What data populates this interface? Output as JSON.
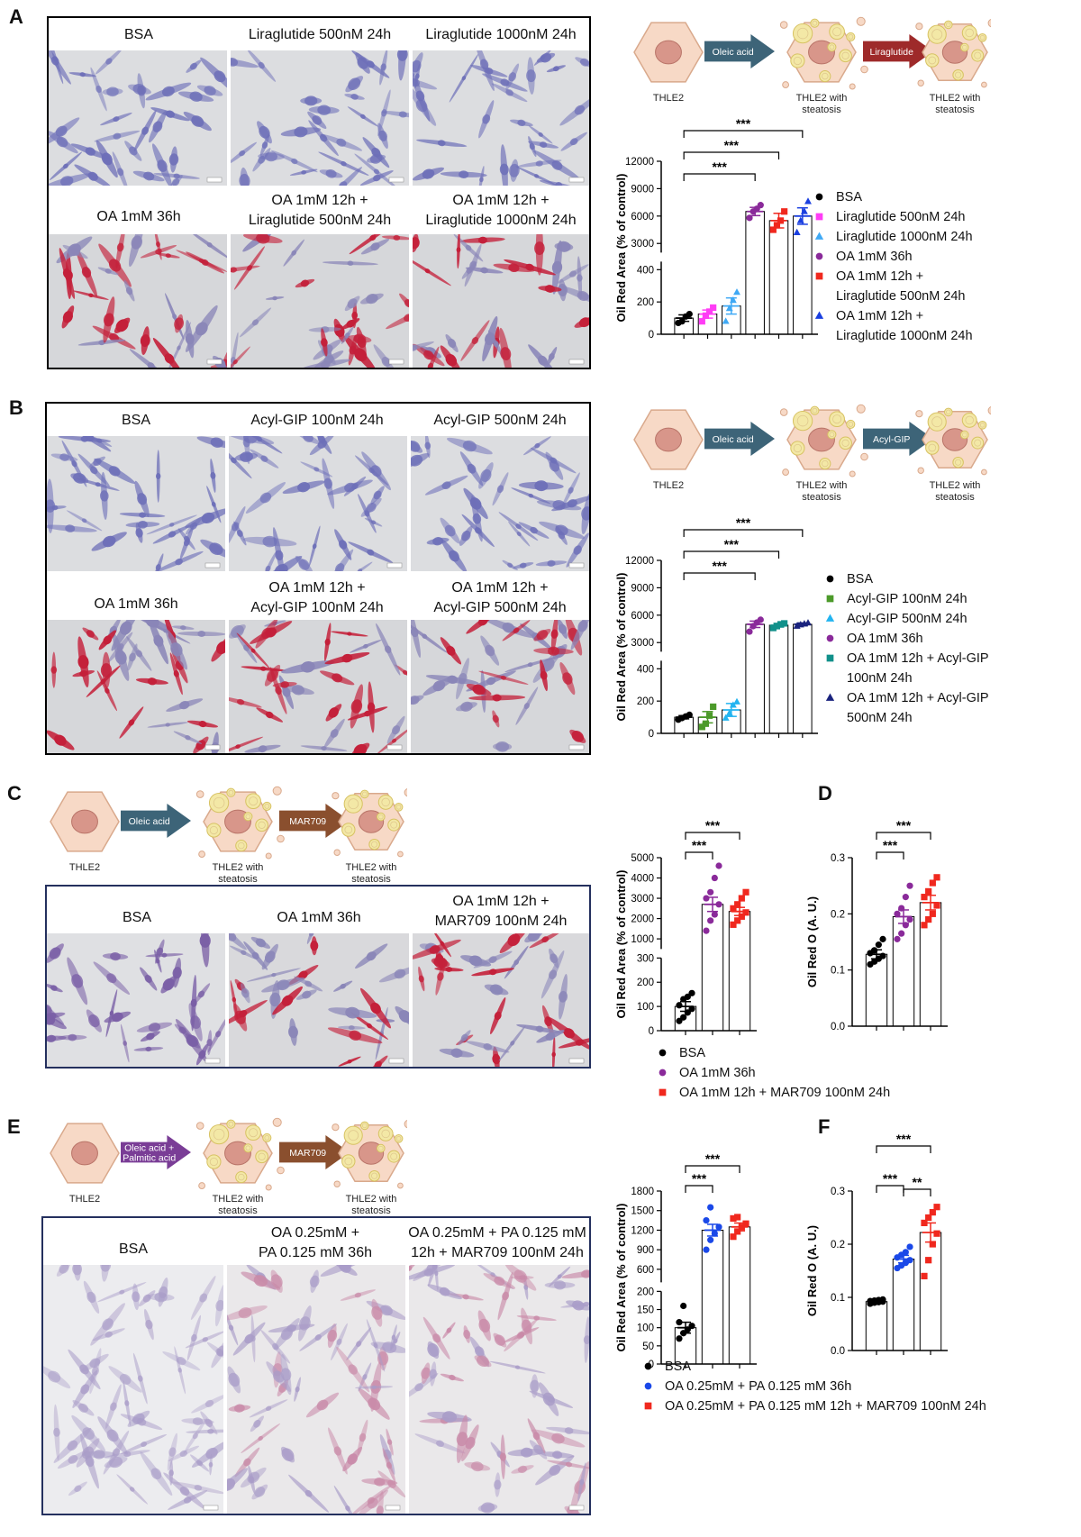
{
  "panels": {
    "A": {
      "letter": "A",
      "labels_top": [
        "BSA",
        "Liraglutide 500nM 24h",
        "Liraglutide 1000nM 24h"
      ],
      "labels_bottom": [
        "OA 1mM 36h",
        "OA 1mM 12h +\nLiraglutide 500nM 24h",
        "OA 1mM 12h +\nLiraglutide 1000nM 24h"
      ],
      "schematic": {
        "start": "THLE2",
        "arrow1": "Oleic acid",
        "mid": "THLE2 with\nsteatosis",
        "arrow2": "Liraglutide",
        "end": "THLE2 with\nsteatosis",
        "arrow1_color": "#3d6478",
        "arrow2_color": "#9e2a2a"
      },
      "legend": [
        {
          "label": "BSA",
          "marker": "circle",
          "color": "#000000"
        },
        {
          "label": "Liraglutide 500nM 24h",
          "marker": "square",
          "color": "#ff3df5"
        },
        {
          "label": "Liraglutide 1000nM 24h",
          "marker": "triangle",
          "color": "#3fa9f5"
        },
        {
          "label": "OA 1mM 36h",
          "marker": "circle",
          "color": "#8a2a9a"
        },
        {
          "label": "OA 1mM 12h +\nLiraglutide 500nM 24h",
          "marker": "square",
          "color": "#f0281e"
        },
        {
          "label": "OA 1mM 12h +\nLiraglutide 1000nM 24h",
          "marker": "triangle",
          "color": "#1a3fe0"
        }
      ]
    },
    "B": {
      "letter": "B",
      "labels_top": [
        "BSA",
        "Acyl-GIP 100nM 24h",
        "Acyl-GIP 500nM 24h"
      ],
      "labels_bottom": [
        "OA 1mM 36h",
        "OA 1mM 12h +\nAcyl-GIP 100nM 24h",
        "OA 1mM 12h +\nAcyl-GIP 500nM 24h"
      ],
      "schematic": {
        "start": "THLE2",
        "arrow1": "Oleic acid",
        "mid": "THLE2 with\nsteatosis",
        "arrow2": "Acyl-GIP",
        "end": "THLE2 with\nsteatosis",
        "arrow1_color": "#3d6478",
        "arrow2_color": "#3d6478"
      },
      "legend": [
        {
          "label": "BSA",
          "marker": "circle",
          "color": "#000000"
        },
        {
          "label": "Acyl-GIP 100nM 24h",
          "marker": "square",
          "color": "#4c9a2a"
        },
        {
          "label": "Acyl-GIP 500nM 24h",
          "marker": "triangle",
          "color": "#23b4f0"
        },
        {
          "label": "OA 1mM 36h",
          "marker": "circle",
          "color": "#8a2a9a"
        },
        {
          "label": "OA 1mM 12h + Acyl-GIP\n100nM 24h",
          "marker": "square",
          "color": "#11908a"
        },
        {
          "label": "OA 1mM 12h + Acyl-GIP\n500nM 24h",
          "marker": "triangle",
          "color": "#1a237e"
        }
      ]
    },
    "C": {
      "letter": "C",
      "labels": [
        "BSA",
        "OA 1mM 36h",
        "OA 1mM 12h +\nMAR709 100nM 24h"
      ],
      "schematic": {
        "start": "THLE2",
        "arrow1": "Oleic acid",
        "mid": "THLE2 with\nsteatosis",
        "arrow2": "MAR709",
        "end": "THLE2 with\nsteatosis",
        "arrow1_color": "#3d6478",
        "arrow2_color": "#8a4f2e"
      },
      "legend": [
        {
          "label": "BSA",
          "marker": "circle",
          "color": "#000000"
        },
        {
          "label": "OA 1mM 36h",
          "marker": "circle",
          "color": "#8a2a9a"
        },
        {
          "label": "OA 1mM 12h + MAR709 100nM 24h",
          "marker": "square",
          "color": "#f0281e"
        }
      ]
    },
    "D": {
      "letter": "D"
    },
    "E": {
      "letter": "E",
      "labels": [
        "BSA",
        "OA 0.25mM +\nPA 0.125 mM 36h",
        "OA 0.25mM + PA 0.125 mM\n12h + MAR709 100nM 24h"
      ],
      "schematic": {
        "start": "THLE2",
        "arrow1": "Oleic acid +\nPalmitic acid",
        "mid": "THLE2 with\nsteatosis",
        "arrow2": "MAR709",
        "end": "THLE2 with\nsteatosis",
        "arrow1_color": "#7a3d96",
        "arrow2_color": "#8a4f2e"
      },
      "legend": [
        {
          "label": "BSA",
          "marker": "circle",
          "color": "#000000"
        },
        {
          "label": "OA 0.25mM + PA 0.125 mM 36h",
          "marker": "circle",
          "color": "#1a48e8"
        },
        {
          "label": "OA 0.25mM + PA 0.125 mM 12h + MAR709 100nM 24h",
          "marker": "square",
          "color": "#f0281e"
        }
      ]
    },
    "F": {
      "letter": "F"
    }
  },
  "chart_data": [
    {
      "id": "A",
      "type": "scatter",
      "ylabel": "Oil Red Area (% of control)",
      "y_break": {
        "lower": [
          0,
          450
        ],
        "upper": [
          2000,
          12000
        ]
      },
      "yticks_lower": [
        0,
        200,
        400
      ],
      "yticks_upper": [
        3000,
        6000,
        9000,
        12000
      ],
      "groups": [
        {
          "name": "BSA",
          "mean": 100,
          "sem": 20,
          "color": "#000000",
          "marker": "circle",
          "points": [
            70,
            80,
            110,
            125
          ]
        },
        {
          "name": "Liraglutide 500nM 24h",
          "mean": 125,
          "sem": 25,
          "color": "#ff3df5",
          "marker": "square",
          "points": [
            80,
            115,
            140,
            165
          ]
        },
        {
          "name": "Liraglutide 1000nM 24h",
          "mean": 175,
          "sem": 50,
          "color": "#3fa9f5",
          "marker": "triangle",
          "points": [
            80,
            160,
            210,
            260
          ]
        },
        {
          "name": "OA 1mM 36h",
          "mean": 6500,
          "sem": 450,
          "color": "#8a2a9a",
          "marker": "circle",
          "points": [
            5800,
            6500,
            6800,
            7200
          ]
        },
        {
          "name": "OA 1mM 12h + Liraglutide 500nM 24h",
          "mean": 5500,
          "sem": 800,
          "color": "#f0281e",
          "marker": "square",
          "points": [
            4500,
            5000,
            5500,
            6500
          ]
        },
        {
          "name": "OA 1mM 12h + Liraglutide 1000nM 24h",
          "mean": 6000,
          "sem": 900,
          "color": "#1a3fe0",
          "marker": "triangle",
          "points": [
            4200,
            5500,
            6500,
            7600
          ]
        }
      ],
      "significance": [
        {
          "from": 0,
          "to": 3,
          "label": "***"
        },
        {
          "from": 0,
          "to": 4,
          "label": "***"
        },
        {
          "from": 0,
          "to": 5,
          "label": "***"
        }
      ]
    },
    {
      "id": "B",
      "type": "scatter",
      "ylabel": "Oil Red Area (% of control)",
      "y_break": {
        "lower": [
          0,
          450
        ],
        "upper": [
          2000,
          12000
        ]
      },
      "yticks_lower": [
        0,
        200,
        400
      ],
      "yticks_upper": [
        3000,
        6000,
        9000,
        12000
      ],
      "groups": [
        {
          "name": "BSA",
          "mean": 100,
          "sem": 10,
          "color": "#000000",
          "marker": "circle",
          "points": [
            85,
            95,
            105,
            115
          ]
        },
        {
          "name": "Acyl-GIP 100nM 24h",
          "mean": 100,
          "sem": 35,
          "color": "#4c9a2a",
          "marker": "square",
          "points": [
            40,
            60,
            110,
            165
          ]
        },
        {
          "name": "Acyl-GIP 500nM 24h",
          "mean": 145,
          "sem": 40,
          "color": "#23b4f0",
          "marker": "triangle",
          "points": [
            95,
            125,
            175,
            195
          ]
        },
        {
          "name": "OA 1mM 36h",
          "mean": 5000,
          "sem": 350,
          "color": "#8a2a9a",
          "marker": "circle",
          "points": [
            4200,
            4800,
            5200,
            5500
          ]
        },
        {
          "name": "OA 1mM 12h + Acyl-GIP 100nM 24h",
          "mean": 4900,
          "sem": 200,
          "color": "#11908a",
          "marker": "square",
          "points": [
            4600,
            4800,
            5000,
            5100
          ]
        },
        {
          "name": "OA 1mM 12h + Acyl-GIP 500nM 24h",
          "mean": 5000,
          "sem": 150,
          "color": "#1a237e",
          "marker": "triangle",
          "points": [
            4800,
            4950,
            5050,
            5150
          ]
        }
      ],
      "significance": [
        {
          "from": 0,
          "to": 3,
          "label": "***"
        },
        {
          "from": 0,
          "to": 4,
          "label": "***"
        },
        {
          "from": 0,
          "to": 5,
          "label": "***"
        }
      ]
    },
    {
      "id": "C",
      "type": "scatter",
      "ylabel": "Oil Red Area (% of control)",
      "y_break": {
        "lower": [
          0,
          300
        ],
        "upper": [
          500,
          5000
        ]
      },
      "yticks_lower": [
        0,
        100,
        200,
        300
      ],
      "yticks_upper": [
        1000,
        2000,
        3000,
        4000,
        5000
      ],
      "groups": [
        {
          "name": "BSA",
          "mean": 100,
          "sem": 20,
          "color": "#000000",
          "marker": "circle",
          "points": [
            40,
            55,
            75,
            90,
            105,
            130,
            140,
            155
          ]
        },
        {
          "name": "OA 1mM 36h",
          "mean": 2700,
          "sem": 350,
          "color": "#8a2a9a",
          "marker": "circle",
          "points": [
            1400,
            1900,
            2200,
            2700,
            3000,
            3300,
            4000,
            4600
          ]
        },
        {
          "name": "OA 1mM 12h + MAR709 100nM 24h",
          "mean": 2350,
          "sem": 200,
          "color": "#f0281e",
          "marker": "square",
          "points": [
            1700,
            1900,
            2100,
            2300,
            2500,
            2700,
            3000,
            3300
          ]
        }
      ],
      "significance": [
        {
          "from": 0,
          "to": 1,
          "label": "***"
        },
        {
          "from": 0,
          "to": 2,
          "label": "***"
        }
      ]
    },
    {
      "id": "D",
      "type": "scatter",
      "ylabel": "Oil Red O (A. U.)",
      "ylim": [
        0,
        0.3
      ],
      "yticks": [
        0.0,
        0.1,
        0.2,
        0.3
      ],
      "groups": [
        {
          "name": "BSA",
          "mean": 0.128,
          "sem": 0.008,
          "color": "#000000",
          "marker": "circle",
          "points": [
            0.11,
            0.115,
            0.12,
            0.125,
            0.13,
            0.135,
            0.145,
            0.155
          ]
        },
        {
          "name": "OA 1mM 36h",
          "mean": 0.195,
          "sem": 0.012,
          "color": "#8a2a9a",
          "marker": "circle",
          "points": [
            0.155,
            0.165,
            0.18,
            0.19,
            0.2,
            0.21,
            0.23,
            0.25
          ]
        },
        {
          "name": "OA 1mM 12h + MAR709 100nM 24h",
          "mean": 0.22,
          "sem": 0.013,
          "color": "#f0281e",
          "marker": "square",
          "points": [
            0.18,
            0.19,
            0.2,
            0.215,
            0.23,
            0.24,
            0.255,
            0.265
          ]
        }
      ],
      "significance": [
        {
          "from": 0,
          "to": 1,
          "label": "***"
        },
        {
          "from": 0,
          "to": 2,
          "label": "***"
        }
      ]
    },
    {
      "id": "E",
      "type": "scatter",
      "ylabel": "Oil Red Area (% of control)",
      "y_break": {
        "lower": [
          0,
          200
        ],
        "upper": [
          400,
          1800
        ]
      },
      "yticks_lower": [
        0,
        50,
        100,
        150,
        200
      ],
      "yticks_upper": [
        600,
        900,
        1200,
        1500,
        1800
      ],
      "groups": [
        {
          "name": "BSA",
          "mean": 100,
          "sem": 15,
          "color": "#000000",
          "marker": "circle",
          "points": [
            70,
            85,
            95,
            105,
            115,
            160
          ]
        },
        {
          "name": "OA 0.25mM + PA 0.125 mM 36h",
          "mean": 1200,
          "sem": 90,
          "color": "#1a48e8",
          "marker": "circle",
          "points": [
            900,
            1050,
            1150,
            1250,
            1350,
            1550
          ]
        },
        {
          "name": "OA 0.25mM + PA 0.125 mM 12h + MAR709 100nM 24h",
          "mean": 1250,
          "sem": 60,
          "color": "#f0281e",
          "marker": "square",
          "points": [
            1100,
            1180,
            1250,
            1300,
            1380,
            1400
          ]
        }
      ],
      "significance": [
        {
          "from": 0,
          "to": 1,
          "label": "***"
        },
        {
          "from": 0,
          "to": 2,
          "label": "***"
        }
      ]
    },
    {
      "id": "F",
      "type": "scatter",
      "ylabel": "Oil Red O (A. U.)",
      "ylim": [
        0,
        0.3
      ],
      "yticks": [
        0.0,
        0.1,
        0.2,
        0.3
      ],
      "groups": [
        {
          "name": "BSA",
          "mean": 0.092,
          "sem": 0.002,
          "color": "#000000",
          "marker": "circle",
          "points": [
            0.088,
            0.09,
            0.091,
            0.092,
            0.093,
            0.094,
            0.095,
            0.096
          ]
        },
        {
          "name": "OA 0.25mM + PA 0.125 mM 36h",
          "mean": 0.172,
          "sem": 0.007,
          "color": "#1a48e8",
          "marker": "circle",
          "points": [
            0.155,
            0.16,
            0.165,
            0.17,
            0.175,
            0.18,
            0.185,
            0.195
          ]
        },
        {
          "name": "OA 0.25mM + PA 0.125 mM 12h + MAR709 100nM 24h",
          "mean": 0.222,
          "sem": 0.018,
          "color": "#f0281e",
          "marker": "square",
          "points": [
            0.14,
            0.17,
            0.2,
            0.22,
            0.24,
            0.25,
            0.26,
            0.27
          ]
        }
      ],
      "significance": [
        {
          "from": 0,
          "to": 1,
          "label": "***"
        },
        {
          "from": 1,
          "to": 2,
          "label": "**"
        },
        {
          "from": 0,
          "to": 2,
          "label": "***"
        }
      ]
    }
  ]
}
